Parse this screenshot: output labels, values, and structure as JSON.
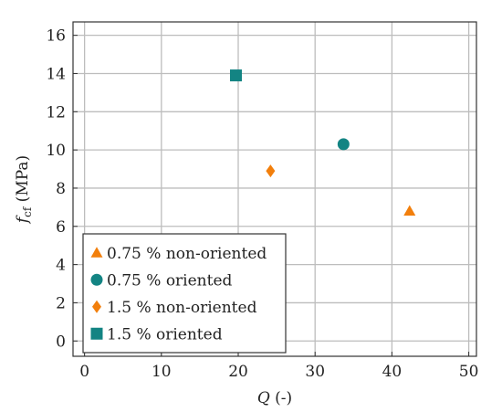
{
  "chart_data": {
    "type": "scatter",
    "xlabel": "Q (-)",
    "ylabel": "f_cf (MPa)",
    "ylabel_parts": {
      "symbol": "f",
      "subscript": "cf",
      "unit": "(MPa)"
    },
    "xlabel_parts": {
      "symbol": "Q",
      "unit": "(-)"
    },
    "xlim": [
      -1.5,
      51
    ],
    "ylim": [
      -0.8,
      16.7
    ],
    "x_ticks": [
      0,
      10,
      20,
      30,
      40,
      50
    ],
    "y_ticks": [
      0,
      2,
      4,
      6,
      8,
      10,
      12,
      14,
      16
    ],
    "x_tick_labels": [
      "0",
      "10",
      "20",
      "30",
      "40",
      "50"
    ],
    "y_tick_labels": [
      "0",
      "2",
      "4",
      "6",
      "8",
      "10",
      "12",
      "14",
      "16"
    ],
    "grid": true,
    "legend_position": "bottom-left",
    "series": [
      {
        "name": "0.75 % non-oriented",
        "marker": "triangle",
        "color": "#f27f0c",
        "points": [
          {
            "x": 42.3,
            "y": 6.8
          }
        ]
      },
      {
        "name": "0.75 % oriented",
        "marker": "circle",
        "color": "#138483",
        "points": [
          {
            "x": 33.7,
            "y": 10.3
          }
        ]
      },
      {
        "name": "1.5 % non-oriented",
        "marker": "diamond",
        "color": "#f27f0c",
        "points": [
          {
            "x": 24.2,
            "y": 8.9
          }
        ]
      },
      {
        "name": "1.5 % oriented",
        "marker": "square",
        "color": "#138483",
        "points": [
          {
            "x": 19.7,
            "y": 13.9
          }
        ]
      }
    ]
  }
}
